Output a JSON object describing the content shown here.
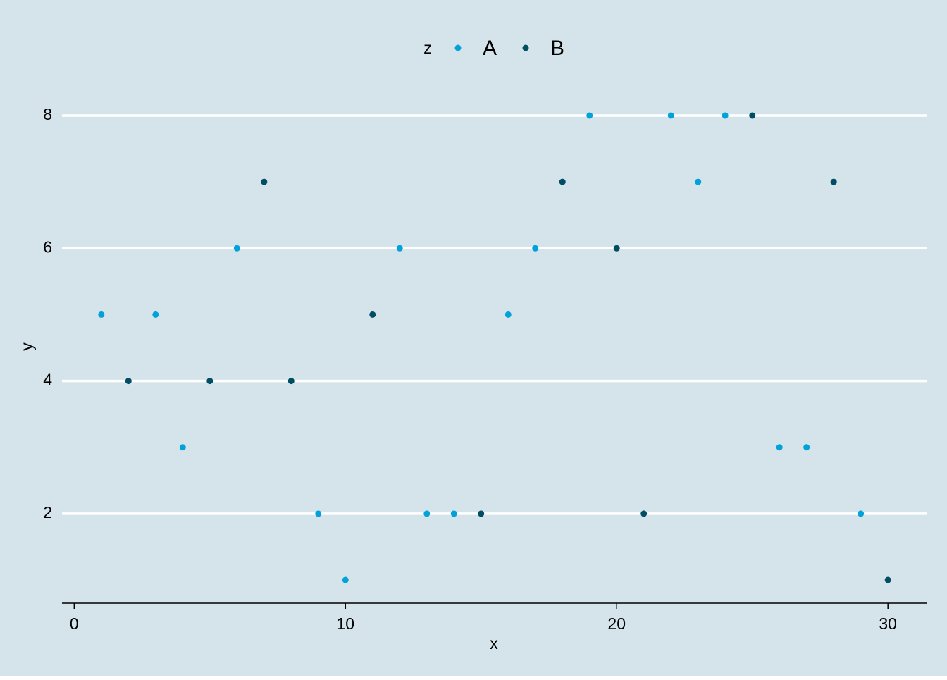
{
  "chart_data": {
    "type": "scatter",
    "x_label": "x",
    "y_label": "y",
    "legend_title": "z",
    "legend_position": "top",
    "grid": true,
    "background": "#d5e4eb",
    "xlim": [
      -0.45,
      31.45
    ],
    "xticks": [
      0,
      10,
      20,
      30
    ],
    "ylim": [
      0.65,
      8.35
    ],
    "yticks": [
      2,
      4,
      6,
      8
    ],
    "series": [
      {
        "name": "A",
        "color": "#01a2d9",
        "x": [
          1,
          3,
          4,
          6,
          9,
          10,
          12,
          13,
          14,
          16,
          17,
          19,
          22,
          23,
          24,
          26,
          27,
          29
        ],
        "values": [
          5,
          5,
          3,
          6,
          2,
          1,
          6,
          2,
          2,
          5,
          6,
          8,
          8,
          7,
          8,
          3,
          3,
          2
        ]
      },
      {
        "name": "B",
        "color": "#014d64",
        "x": [
          2,
          5,
          7,
          8,
          11,
          15,
          18,
          20,
          21,
          25,
          28,
          30
        ],
        "values": [
          4,
          4,
          7,
          4,
          5,
          2,
          7,
          6,
          2,
          8,
          7,
          1
        ]
      }
    ]
  }
}
